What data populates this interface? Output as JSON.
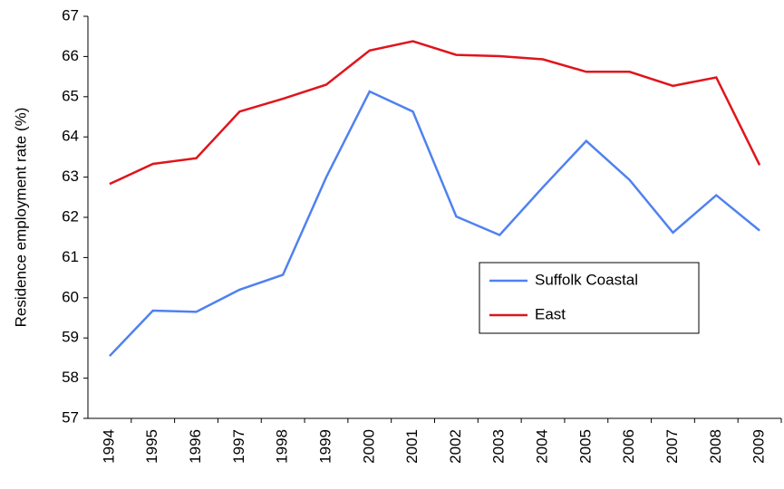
{
  "chart_data": {
    "type": "line",
    "y_label": "Residence employment rate (%)",
    "categories": [
      "1994",
      "1995",
      "1996",
      "1997",
      "1998",
      "1999",
      "2000",
      "2001",
      "2002",
      "2003",
      "2004",
      "2005",
      "2006",
      "2007",
      "2008",
      "2009"
    ],
    "series": [
      {
        "name": "Suffolk Coastal",
        "color": "#4f81f0",
        "values": [
          58.55,
          59.68,
          59.65,
          60.2,
          60.57,
          63.0,
          65.13,
          64.63,
          62.02,
          61.56,
          62.75,
          63.9,
          62.93,
          61.62,
          62.55,
          61.67
        ]
      },
      {
        "name": "East",
        "color": "#e0141c",
        "values": [
          62.83,
          63.33,
          63.47,
          64.63,
          64.95,
          65.3,
          66.15,
          66.38,
          66.04,
          66.01,
          65.93,
          65.62,
          65.62,
          65.27,
          65.48,
          63.3
        ]
      }
    ],
    "ylim": [
      57,
      67
    ],
    "yticks": [
      57,
      58,
      59,
      60,
      61,
      62,
      63,
      64,
      65,
      66,
      67
    ],
    "grid": false
  }
}
